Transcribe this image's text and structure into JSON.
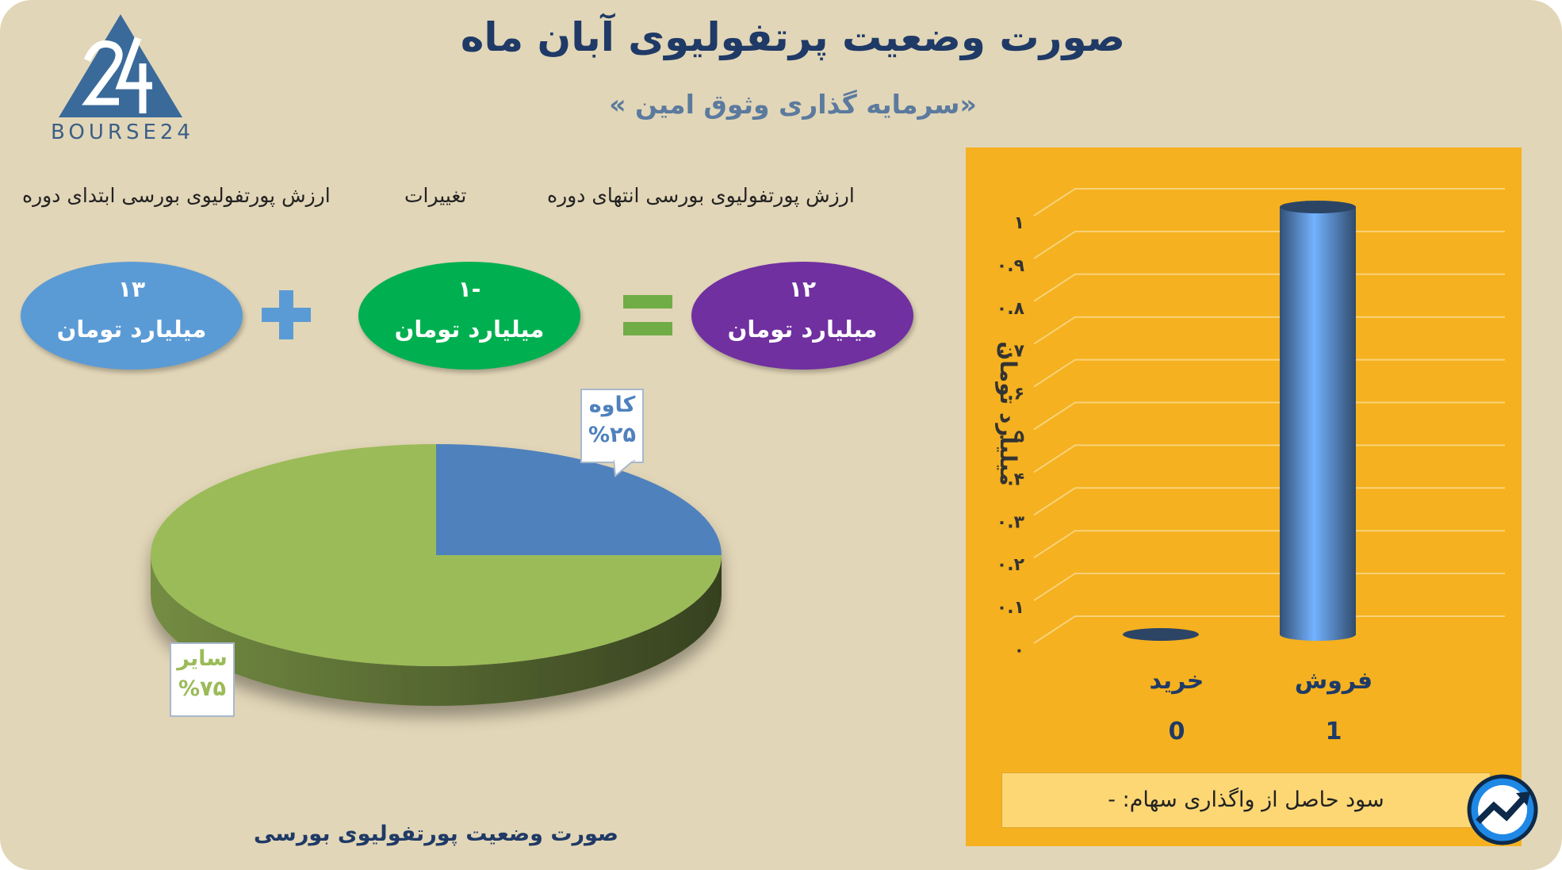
{
  "page": {
    "title": "صورت وضعیت پرتفولیوی آبان ماه",
    "subtitle": "«سرمایه گذاری وثوق امین »",
    "logo_text": "BOURSE24"
  },
  "summary": {
    "end_label": "ارزش پورتفولیوی بورسی انتهای دوره",
    "change_label": "تغییرات",
    "start_label": "ارزش پورتفولیوی بورسی ابتدای دوره",
    "start_value": "۱۳",
    "change_value": "-۱",
    "end_value": "۱۲",
    "unit": "میلیارد تومان",
    "colors": {
      "start": "#5b9bd5",
      "change": "#00b050",
      "end": "#7030a0",
      "operator": "#70ad47"
    }
  },
  "chart_data": [
    {
      "type": "pie",
      "title": "صورت وضعیت پورتفولیوی بورسی",
      "slices": [
        {
          "label": "کاوه",
          "value": 25,
          "display": "%۲۵",
          "color": "#4f81bd"
        },
        {
          "label": "سایر",
          "value": 75,
          "display": "%۷۵",
          "color": "#9bbb59"
        }
      ]
    },
    {
      "type": "bar",
      "ylabel": "میلیارد تومان",
      "ylim": [
        0,
        1
      ],
      "yticks": [
        "۰",
        "۰.۱",
        "۰.۲",
        "۰.۳",
        "۰.۴",
        "۰.۵",
        "۰.۶",
        "۰.۷",
        "۰.۸",
        "۰.۹",
        "۱"
      ],
      "categories": [
        "خرید",
        "فروش"
      ],
      "values": [
        0,
        1
      ],
      "value_labels": [
        "0",
        "1"
      ],
      "bar_color": "#4a73a8"
    }
  ],
  "profit_note": "سود حاصل از واگذاری سهام: -",
  "accent": {
    "panel": "#f5b11f",
    "title": "#1f3a66",
    "background": "#e2d6b8"
  }
}
